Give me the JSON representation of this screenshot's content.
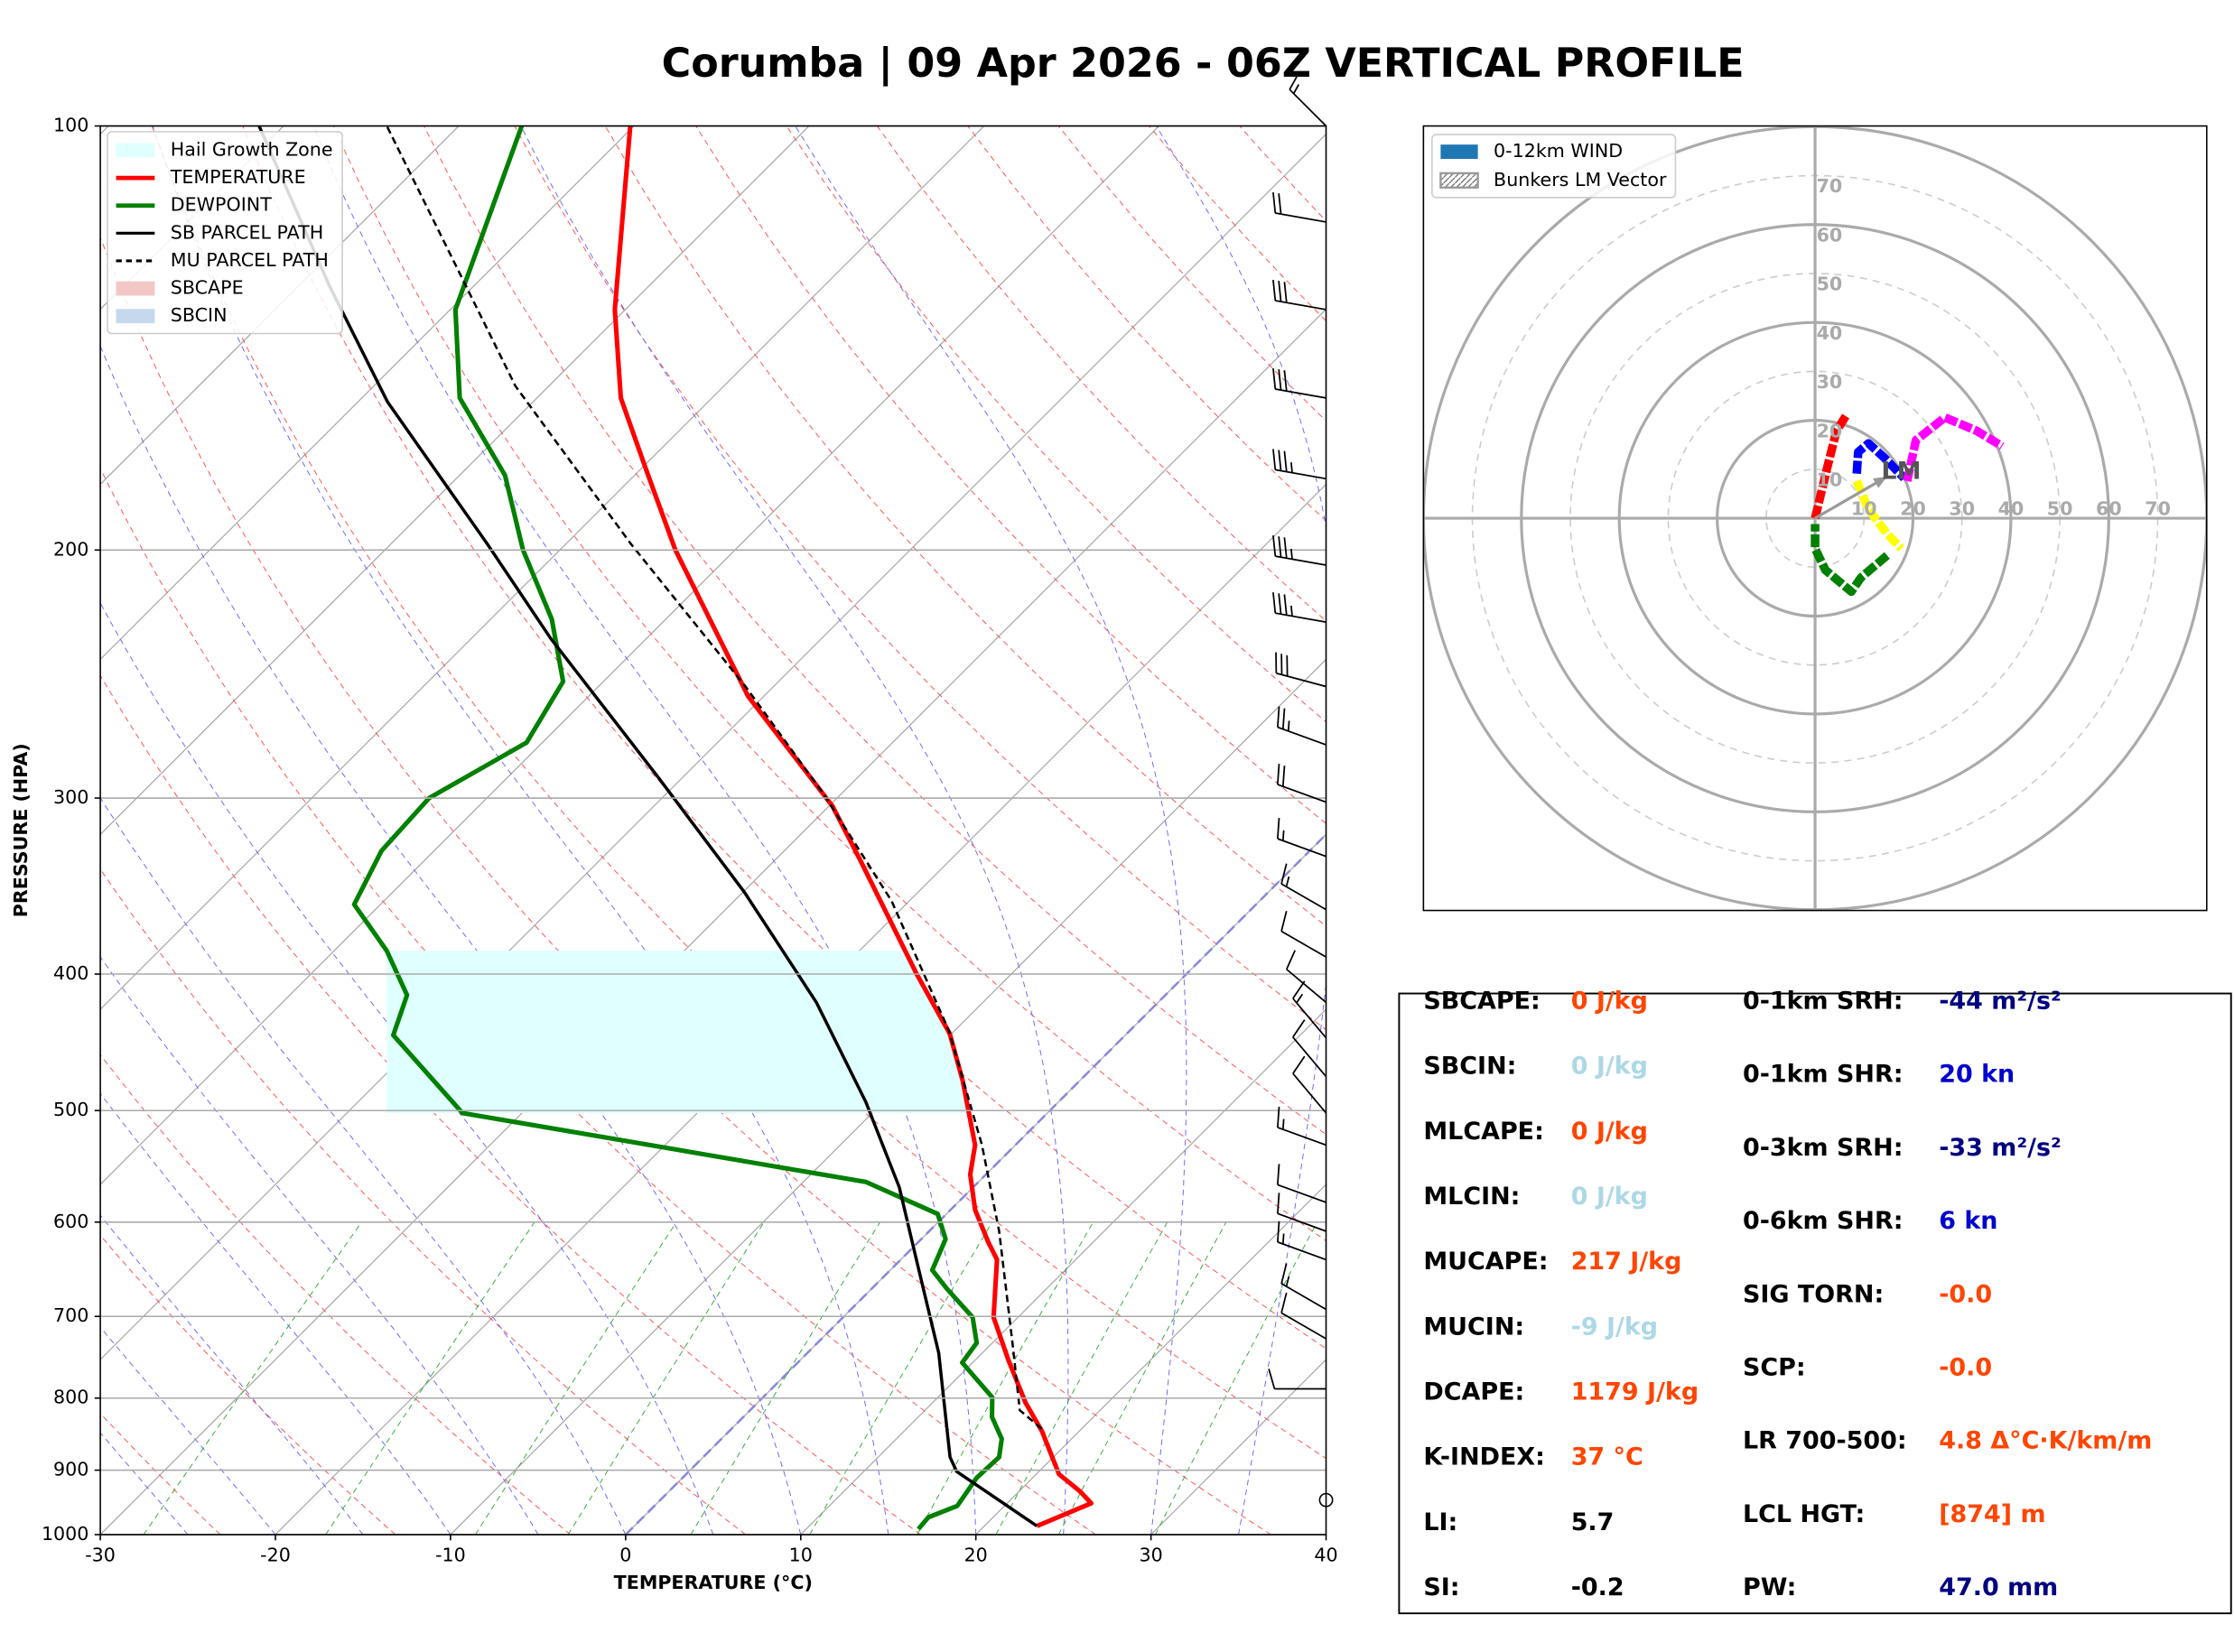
{
  "title": "Corumba | 09 Apr 2026 - 06Z VERTICAL PROFILE",
  "chart_data": [
    {
      "type": "skewt",
      "xlabel": "TEMPERATURE (°C)",
      "ylabel": "PRESSURE (HPA)",
      "xlim": [
        -30,
        40
      ],
      "xticks": [
        -30,
        -20,
        -10,
        0,
        10,
        20,
        30,
        40
      ],
      "ylim": [
        1000,
        100
      ],
      "yticks": [
        1000,
        900,
        800,
        700,
        600,
        500,
        400,
        300,
        200,
        100
      ],
      "log_y": true,
      "grid": true,
      "legend": "upper left",
      "series": [
        {
          "name": "TEMPERATURE",
          "color": "#ff0000",
          "dash": false,
          "pressure": [
            986,
            950,
            932,
            906,
            845,
            806,
            752,
            701,
            638,
            620,
            588,
            555,
            529,
            476,
            441,
            400,
            331,
            304,
            254,
            200,
            176,
            156,
            135,
            100
          ],
          "temperature": [
            23.0,
            24.8,
            23.5,
            21.3,
            17.9,
            15.3,
            11.9,
            8.6,
            5.5,
            4.0,
            1.4,
            -0.9,
            -2.3,
            -6.7,
            -10.1,
            -15.4,
            -25.3,
            -29.8,
            -40.9,
            -53.4,
            -59.5,
            -65.2,
            -70.6,
            -80.2
          ]
        },
        {
          "name": "DEWPOINT",
          "color": "#008000",
          "dash": false,
          "pressure": [
            991,
            972,
            954,
            911,
            881,
            855,
            825,
            799,
            755,
            731,
            701,
            669,
            649,
            617,
            592,
            562,
            502,
            442,
            414,
            385,
            357,
            327,
            300,
            274,
            248,
            224,
            200,
            177,
            156,
            135,
            118,
            100
          ],
          "temperature": [
            16.4,
            16.3,
            17.3,
            16.8,
            16.9,
            16.0,
            14.2,
            13.1,
            9.4,
            9.1,
            7.4,
            4.3,
            2.4,
            1.4,
            -0.5,
            -6.4,
            -33.4,
            -41.8,
            -43.3,
            -47.0,
            -51.5,
            -53.0,
            -53.3,
            -50.9,
            -52.3,
            -56.5,
            -62.1,
            -67.4,
            -74.4,
            -79.7,
            -82.7,
            -86.4
          ]
        },
        {
          "name": "SB PARCEL PATH",
          "color": "#000000",
          "dash": false,
          "pressure": [
            986,
            902,
            881,
            743,
            638,
            567,
            493,
            419,
            350,
            290,
            231,
            198,
            157,
            130,
            100
          ],
          "temperature": [
            23.0,
            15.3,
            14.1,
            7.5,
            0.9,
            -4.2,
            -11.0,
            -19.5,
            -29.9,
            -41.4,
            -55.5,
            -64.5,
            -78.3,
            -88.2,
            -101.4
          ]
        },
        {
          "name": "MU PARCEL PATH",
          "color": "#000000",
          "dash": true,
          "pressure": [
            841,
            816,
            734,
            609,
            529,
            439,
            355,
            298,
            250,
            198,
            153,
            100
          ],
          "temperature": [
            17.7,
            15.4,
            11.3,
            4.0,
            -1.9,
            -10.3,
            -21.0,
            -31.0,
            -41.6,
            -56.3,
            -71.9,
            -94.1
          ]
        }
      ],
      "hail_growth_zone": {
        "name": "Hail Growth Zone",
        "color": "#e0ffff",
        "pressure": [
          502,
          385
        ]
      },
      "extra_legend": [
        {
          "name": "SBCAPE",
          "color": "#f4c7c7"
        },
        {
          "name": "SBCIN",
          "color": "#c6d9ec"
        }
      ],
      "wind_barbs": {
        "pressure": [
          100,
          117,
          135,
          156,
          178,
          205,
          225,
          250,
          275,
          302,
          330,
          360,
          389,
          419,
          444,
          473,
          502,
          529,
          581,
          609,
          638,
          692,
          726,
          788,
          945
        ],
        "speed": [
          15,
          20,
          30,
          30,
          35,
          35,
          35,
          30,
          25,
          20,
          15,
          15,
          10,
          10,
          15,
          10,
          10,
          15,
          10,
          10,
          15,
          15,
          10,
          10,
          0
        ],
        "direction": [
          315,
          280,
          280,
          280,
          280,
          280,
          280,
          285,
          290,
          290,
          290,
          300,
          300,
          310,
          320,
          320,
          320,
          290,
          290,
          290,
          290,
          300,
          300,
          270,
          0
        ]
      }
    },
    {
      "type": "hodograph",
      "xlim": [
        -80,
        80
      ],
      "ylim": [
        -80,
        80
      ],
      "ticks": [
        10,
        20,
        30,
        40,
        50,
        60,
        70
      ],
      "rings": [
        20,
        40,
        60,
        80
      ],
      "legend": [
        {
          "name": "0-12km WIND",
          "color": "#1f77b4"
        },
        {
          "name": "Bunkers LM Vector",
          "color": "#999999"
        }
      ],
      "segments": [
        {
          "color": "#ff0000",
          "u": [
            0,
            2.4,
            4.4,
            6.5
          ],
          "v": [
            0,
            10,
            17.9,
            21.2
          ]
        },
        {
          "color": "#0000ff",
          "u": [
            8.5,
            8.8,
            10.9,
            14.1,
            18.2
          ],
          "v": [
            9.1,
            13.5,
            15.3,
            12.4,
            8.2
          ]
        },
        {
          "color": "#ff00ff",
          "u": [
            18.8,
            20.6,
            26.5,
            32.9,
            38.2
          ],
          "v": [
            7.6,
            15.9,
            20.6,
            17.9,
            14.7
          ]
        },
        {
          "color": "#ffff00",
          "u": [
            8.5,
            10.9,
            14.7,
            17.6
          ],
          "v": [
            7.6,
            1.8,
            -3.2,
            -6.2
          ]
        },
        {
          "color": "#008000",
          "u": [
            14.7,
            9.4,
            7.4,
            2.1,
            0,
            0
          ],
          "v": [
            -7.6,
            -12.1,
            -15,
            -10.6,
            -6.2,
            -1.2
          ]
        }
      ],
      "lm_vector": {
        "label": "LM",
        "u": 14.7,
        "v": 8.5
      }
    }
  ],
  "stats": {
    "left": [
      {
        "label": "SBCAPE:",
        "value": "0 J/kg",
        "color": "#ff4500"
      },
      {
        "label": "SBCIN:",
        "value": "0 J/kg",
        "color": "#add8e6"
      },
      {
        "label": "MLCAPE:",
        "value": "0 J/kg",
        "color": "#ff4500"
      },
      {
        "label": "MLCIN:",
        "value": "0 J/kg",
        "color": "#add8e6"
      },
      {
        "label": "MUCAPE:",
        "value": "217 J/kg",
        "color": "#ff4500"
      },
      {
        "label": "MUCIN:",
        "value": "-9 J/kg",
        "color": "#add8e6"
      },
      {
        "label": "DCAPE:",
        "value": "1179 J/kg",
        "color": "#ff4500"
      },
      {
        "label": "K-INDEX:",
        "value": "37 °C",
        "color": "#ff4500"
      },
      {
        "label": "LI:",
        "value": "5.7",
        "color": "#000000"
      },
      {
        "label": "SI:",
        "value": "-0.2",
        "color": "#000000"
      }
    ],
    "right": [
      {
        "label": "0-1km SRH:",
        "value": "-44 m²/s²",
        "color": "#000080"
      },
      {
        "label": "0-1km SHR:",
        "value": "20 kn",
        "color": "#0000cd"
      },
      {
        "label": "0-3km SRH:",
        "value": "-33 m²/s²",
        "color": "#000080"
      },
      {
        "label": "0-6km SHR:",
        "value": "6 kn",
        "color": "#0000cd"
      },
      {
        "label": "SIG TORN:",
        "value": "-0.0",
        "color": "#ff4500"
      },
      {
        "label": "SCP:",
        "value": "-0.0",
        "color": "#ff4500"
      },
      {
        "label": "LR 700-500:",
        "value": "4.8 Δ°C·K/km/m",
        "color": "#ff4500"
      },
      {
        "label": "LCL HGT:",
        "value": "[874] m",
        "color": "#ff4500"
      },
      {
        "label": "PW:",
        "value": "47.0 mm",
        "color": "#000080"
      }
    ]
  }
}
